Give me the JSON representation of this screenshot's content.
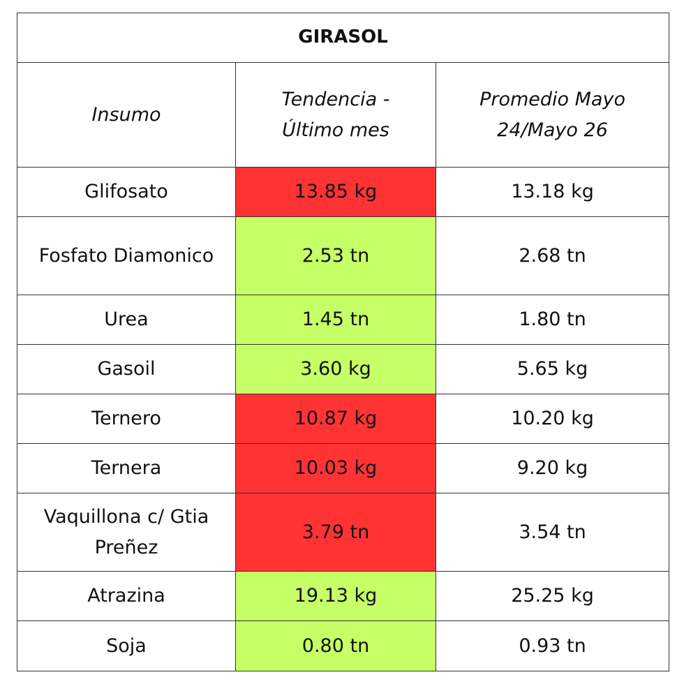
{
  "title": "GIRASOL",
  "header": [
    "Insumo",
    "Tendencia - Último mes",
    "Promedio Mayo 24/Mayo 26"
  ],
  "rows": [
    {
      "insumo": "Glifosato",
      "tendencia": "13.85 kg",
      "promedio": "13.18 kg",
      "color": "#ff3333"
    },
    {
      "insumo": "Fosfato Diamonico",
      "tendencia": "2.53 tn",
      "promedio": "2.68 tn",
      "color": "#c6ff66"
    },
    {
      "insumo": "Urea",
      "tendencia": "1.45 tn",
      "promedio": "1.80 tn",
      "color": "#c6ff66"
    },
    {
      "insumo": "Gasoil",
      "tendencia": "3.60 kg",
      "promedio": "5.65 kg",
      "color": "#c6ff66"
    },
    {
      "insumo": "Ternero",
      "tendencia": "10.87 kg",
      "promedio": "10.20 kg",
      "color": "#ff3333"
    },
    {
      "insumo": "Ternera",
      "tendencia": "10.03 kg",
      "promedio": "9.20 kg",
      "color": "#ff3333"
    },
    {
      "insumo": "Vaquillona c/ Gtia Preñez",
      "tendencia": "3.79 tn",
      "promedio": "3.54 tn",
      "color": "#ff3333"
    },
    {
      "insumo": "Atrazina",
      "tendencia": "19.13 kg",
      "promedio": "25.25 kg",
      "color": "#c6ff66"
    },
    {
      "insumo": "Soja",
      "tendencia": "0.80 tn",
      "promedio": "0.93 tn",
      "color": "#c6ff66"
    }
  ]
}
